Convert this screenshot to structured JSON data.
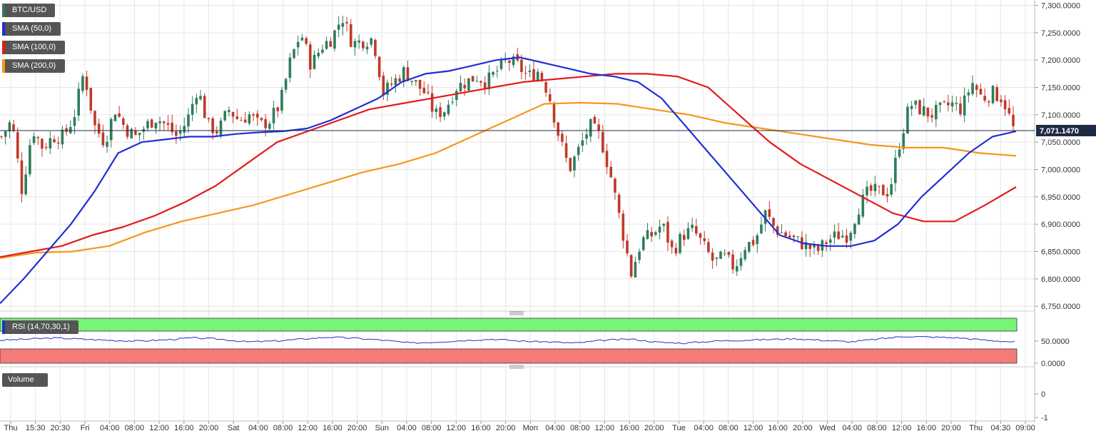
{
  "legend": {
    "symbol": "BTC/USD",
    "sma50": "SMA (50,0)",
    "sma100": "SMA (100,0)",
    "sma200": "SMA (200,0)",
    "rsi": "RSI (14,70,30,1)",
    "volume": "Volume"
  },
  "colors": {
    "up": "#2e7d5b",
    "down": "#c0392b",
    "sma50": "#1f2fd6",
    "sma100": "#e31b1b",
    "sma200": "#f5971d",
    "rsi_line": "#1f2fd6",
    "rsi_overbought": "#76f576",
    "rsi_oversold": "#f57a7a",
    "grid": "#e6e6e6",
    "price_marker_bg": "#1f2a44"
  },
  "current_price": "7,071.1470",
  "chart_data": {
    "type": "candlestick",
    "price_axis": {
      "ticks": [
        "7,300.0000",
        "7,250.0000",
        "7,200.0000",
        "7,150.0000",
        "7,100.0000",
        "7,050.0000",
        "7,000.0000",
        "6,950.0000",
        "6,900.0000",
        "6,850.0000",
        "6,800.0000",
        "6,750.0000"
      ],
      "ylim": [
        6745,
        7302
      ]
    },
    "rsi_axis": {
      "ticks": [
        "50.0000",
        "0.0000"
      ]
    },
    "volume_axis": {
      "ticks": [
        "0",
        "-1"
      ]
    },
    "time_labels": [
      "Thu",
      "15:30",
      "20:30",
      "Fri",
      "04:00",
      "08:00",
      "12:00",
      "16:00",
      "20:00",
      "Sat",
      "04:00",
      "08:00",
      "12:00",
      "16:00",
      "20:00",
      "Sun",
      "04:00",
      "08:00",
      "12:00",
      "16:00",
      "20:00",
      "Mon",
      "04:00",
      "08:00",
      "12:00",
      "16:00",
      "20:00",
      "Tue",
      "04:00",
      "08:00",
      "12:00",
      "16:00",
      "20:00",
      "Wed",
      "04:00",
      "08:00",
      "12:00",
      "16:00",
      "20:00",
      "Thu",
      "04:30",
      "09:00"
    ],
    "price_keypoints": [
      7060,
      7090,
      6960,
      7075,
      7040,
      7060,
      7060,
      7095,
      7180,
      7080,
      7050,
      7110,
      7075,
      7060,
      7080,
      7095,
      7080,
      7060,
      7090,
      7150,
      7080,
      7070,
      7110,
      7090,
      7100,
      7080,
      7090,
      7120,
      7200,
      7250,
      7190,
      7225,
      7240,
      7280,
      7230,
      7235,
      7240,
      7140,
      7160,
      7180,
      7160,
      7140,
      7100,
      7110,
      7150,
      7160,
      7170,
      7160,
      7180,
      7200,
      7190,
      7170,
      7180,
      7140,
      7060,
      7000,
      7040,
      7080,
      7060,
      6990,
      6900,
      6810,
      6870,
      6880,
      6900,
      6850,
      6880,
      6890,
      6860,
      6830,
      6840,
      6820,
      6860,
      6870,
      6920,
      6890,
      6880,
      6870,
      6860,
      6850,
      6870,
      6880,
      6880,
      6930,
      6960,
      6960,
      6960,
      7050,
      7120,
      7110,
      7100,
      7110,
      7120,
      7110,
      7160,
      7130,
      7140,
      7130,
      7075
    ],
    "sma50": [
      6755,
      6800,
      6850,
      6900,
      6960,
      7030,
      7050,
      7055,
      7060,
      7060,
      7065,
      7068,
      7070,
      7075,
      7090,
      7110,
      7130,
      7160,
      7175,
      7180,
      7190,
      7200,
      7205,
      7195,
      7185,
      7175,
      7170,
      7160,
      7130,
      7080,
      7030,
      6980,
      6930,
      6880,
      6865,
      6860,
      6860,
      6870,
      6900,
      6950,
      6990,
      7030,
      7060,
      7070
    ],
    "sma100": [
      6840,
      6850,
      6860,
      6880,
      6895,
      6915,
      6940,
      6970,
      7010,
      7050,
      7070,
      7090,
      7110,
      7120,
      7130,
      7140,
      7150,
      7160,
      7165,
      7170,
      7175,
      7175,
      7170,
      7150,
      7100,
      7050,
      7010,
      6980,
      6950,
      6920,
      6905,
      6905,
      6935,
      6968
    ],
    "sma200": [
      6838,
      6848,
      6850,
      6860,
      6885,
      6905,
      6920,
      6935,
      6955,
      6975,
      6995,
      7010,
      7030,
      7060,
      7090,
      7120,
      7122,
      7120,
      7110,
      7100,
      7085,
      7075,
      7065,
      7055,
      7045,
      7040,
      7040,
      7030,
      7025
    ],
    "rsi_keypoints": [
      52,
      55,
      58,
      55,
      52,
      50,
      53,
      58,
      55,
      48,
      50,
      55,
      60,
      57,
      52,
      45,
      48,
      52,
      55,
      50,
      48,
      45,
      52,
      55,
      47,
      45,
      50,
      52,
      54,
      56,
      52,
      48,
      55,
      62,
      60,
      58,
      52,
      48
    ]
  }
}
